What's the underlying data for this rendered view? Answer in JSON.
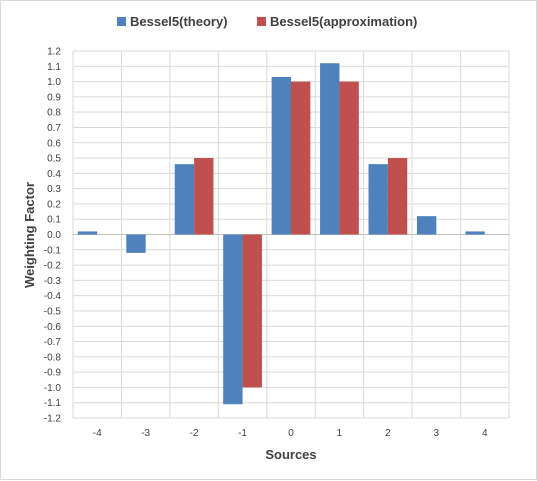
{
  "chart_data": {
    "type": "bar",
    "title": "",
    "xlabel": "Sources",
    "ylabel": "Weighting Factor",
    "categories": [
      "-4",
      "-3",
      "-2",
      "-1",
      "0",
      "1",
      "2",
      "3",
      "4"
    ],
    "series": [
      {
        "name": "Bessel5(theory)",
        "color": "#4f81bd",
        "values": [
          0.02,
          -0.12,
          0.46,
          -1.11,
          1.03,
          1.12,
          0.46,
          0.12,
          0.02
        ]
      },
      {
        "name": "Bessel5(approximation)",
        "color": "#c0504d",
        "values": [
          0,
          0,
          0.5,
          -1.0,
          1.0,
          1.0,
          0.5,
          0,
          0
        ]
      }
    ],
    "ylim": [
      -1.2,
      1.2
    ],
    "ytick_step": 0.1,
    "ytick_labels": [
      "1.2",
      "1.1",
      "1.0",
      "0.9",
      "0.8",
      "0.7",
      "0.6",
      "0.5",
      "0.4",
      "0.3",
      "0.2",
      "0.1",
      "0.0",
      "-0.1",
      "-0.2",
      "-0.3",
      "-0.4",
      "-0.5",
      "-0.6",
      "-0.7",
      "-0.8",
      "-0.9",
      "-1.0",
      "-1.1",
      "-1.2"
    ],
    "grid": true,
    "legend_position": "top-center"
  }
}
